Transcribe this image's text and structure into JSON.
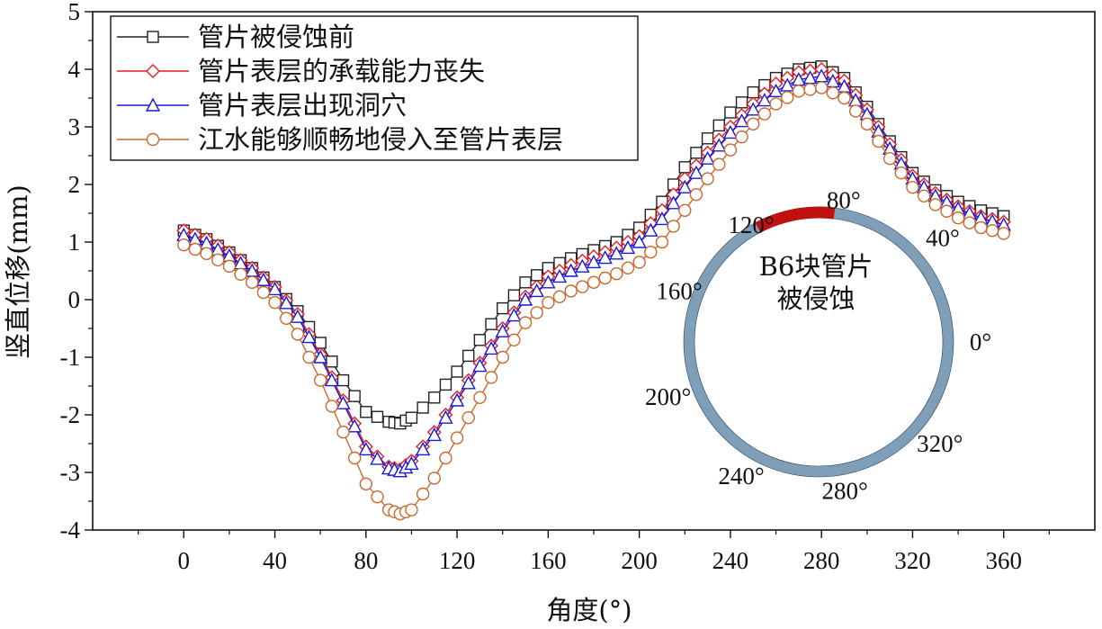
{
  "chart_data": {
    "type": "line",
    "xlabel": "角度(°)",
    "ylabel": "竖直位移(mm)",
    "xlim": [
      -40,
      400
    ],
    "ylim": [
      -4,
      5
    ],
    "xticks": [
      0,
      40,
      80,
      120,
      160,
      200,
      240,
      280,
      320,
      360
    ],
    "yticks": [
      -4,
      -3,
      -2,
      -1,
      0,
      1,
      2,
      3,
      4,
      5
    ],
    "legend_position": "top-left",
    "series": [
      {
        "name": "管片被侵蚀前",
        "color": "#222222",
        "marker": "square",
        "x": [
          0,
          10,
          20,
          30,
          40,
          50,
          60,
          70,
          80,
          90,
          95,
          100,
          110,
          120,
          130,
          140,
          150,
          160,
          170,
          180,
          190,
          200,
          210,
          220,
          230,
          240,
          250,
          260,
          270,
          280,
          290,
          300,
          310,
          320,
          330,
          340,
          350,
          360
        ],
        "y": [
          1.2,
          1.05,
          0.82,
          0.55,
          0.22,
          -0.2,
          -0.75,
          -1.4,
          -1.95,
          -2.12,
          -2.15,
          -2.05,
          -1.7,
          -1.25,
          -0.7,
          -0.15,
          0.3,
          0.55,
          0.72,
          0.86,
          1.0,
          1.25,
          1.7,
          2.3,
          2.8,
          3.25,
          3.6,
          3.85,
          4.0,
          4.05,
          3.85,
          3.35,
          2.75,
          2.2,
          1.9,
          1.7,
          1.55,
          1.45
        ]
      },
      {
        "name": "管片表层的承载能力丧失",
        "color": "#e02020",
        "marker": "diamond",
        "x": [
          0,
          10,
          20,
          30,
          40,
          50,
          60,
          70,
          80,
          90,
          95,
          100,
          110,
          120,
          130,
          140,
          150,
          160,
          170,
          180,
          190,
          200,
          210,
          220,
          230,
          240,
          250,
          260,
          270,
          280,
          290,
          300,
          310,
          320,
          330,
          340,
          350,
          360
        ],
        "y": [
          1.2,
          1.05,
          0.82,
          0.55,
          0.22,
          -0.25,
          -0.95,
          -1.75,
          -2.55,
          -2.9,
          -2.95,
          -2.8,
          -2.3,
          -1.7,
          -1.1,
          -0.5,
          0.05,
          0.4,
          0.6,
          0.75,
          0.9,
          1.1,
          1.55,
          2.1,
          2.55,
          3.0,
          3.4,
          3.75,
          3.95,
          4.0,
          3.8,
          3.3,
          2.7,
          2.15,
          1.85,
          1.62,
          1.45,
          1.35
        ]
      },
      {
        "name": "管片表层出现洞穴",
        "color": "#1818d8",
        "marker": "triangle",
        "x": [
          0,
          10,
          20,
          30,
          40,
          50,
          60,
          70,
          80,
          90,
          95,
          100,
          110,
          120,
          130,
          140,
          150,
          160,
          170,
          180,
          190,
          200,
          210,
          220,
          230,
          240,
          250,
          260,
          270,
          280,
          290,
          300,
          310,
          320,
          330,
          340,
          350,
          360
        ],
        "y": [
          1.12,
          0.98,
          0.76,
          0.5,
          0.18,
          -0.3,
          -1.0,
          -1.8,
          -2.6,
          -2.93,
          -2.98,
          -2.85,
          -2.35,
          -1.75,
          -1.15,
          -0.55,
          0.0,
          0.3,
          0.5,
          0.65,
          0.8,
          1.0,
          1.4,
          1.95,
          2.45,
          2.9,
          3.3,
          3.62,
          3.82,
          3.88,
          3.7,
          3.22,
          2.62,
          2.1,
          1.8,
          1.58,
          1.42,
          1.3
        ]
      },
      {
        "name": "江水能够顺畅地侵入至管片表层",
        "color": "#c8682e",
        "marker": "circle",
        "x": [
          0,
          10,
          20,
          30,
          40,
          50,
          60,
          70,
          80,
          90,
          95,
          100,
          110,
          120,
          130,
          140,
          150,
          160,
          170,
          180,
          190,
          200,
          210,
          220,
          230,
          240,
          250,
          260,
          270,
          280,
          290,
          300,
          310,
          320,
          330,
          340,
          350,
          360
        ],
        "y": [
          0.95,
          0.8,
          0.58,
          0.3,
          -0.05,
          -0.6,
          -1.4,
          -2.3,
          -3.2,
          -3.65,
          -3.72,
          -3.65,
          -3.1,
          -2.4,
          -1.7,
          -1.0,
          -0.4,
          -0.05,
          0.15,
          0.3,
          0.45,
          0.65,
          1.0,
          1.55,
          2.1,
          2.6,
          3.05,
          3.4,
          3.62,
          3.68,
          3.5,
          3.05,
          2.45,
          1.95,
          1.65,
          1.42,
          1.25,
          1.15
        ]
      }
    ],
    "inset": {
      "caption_lines": [
        "B6块管片",
        "被侵蚀"
      ],
      "angle_labels": [
        "0°",
        "40°",
        "80°",
        "120°",
        "160°",
        "200°",
        "240°",
        "280°",
        "320°"
      ],
      "ring_color": "#7f9fb8",
      "eroded_color": "#c01010",
      "eroded_range_deg": [
        83,
        118
      ]
    }
  }
}
